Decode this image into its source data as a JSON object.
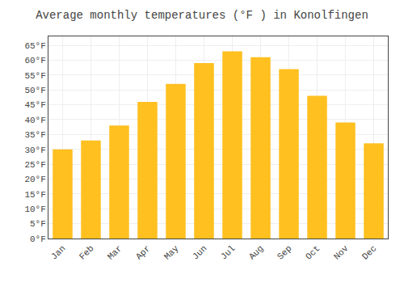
{
  "chart_data": {
    "type": "bar",
    "title": "Average monthly temperatures (°F ) in Konolfingen",
    "categories": [
      "Jan",
      "Feb",
      "Mar",
      "Apr",
      "May",
      "Jun",
      "Jul",
      "Aug",
      "Sep",
      "Oct",
      "Nov",
      "Dec"
    ],
    "values": [
      30,
      33,
      38,
      46,
      52,
      59,
      63,
      61,
      57,
      48,
      39,
      32
    ],
    "color": "#FFC020",
    "ylim": [
      0,
      68
    ],
    "yticks": [
      {
        "value": 0,
        "label": "0°F"
      },
      {
        "value": 5,
        "label": "5°F"
      },
      {
        "value": 10,
        "label": "10°F"
      },
      {
        "value": 15,
        "label": "15°F"
      },
      {
        "value": 20,
        "label": "20°F"
      },
      {
        "value": 25,
        "label": "25°F"
      },
      {
        "value": 30,
        "label": "30°F"
      },
      {
        "value": 35,
        "label": "35°F"
      },
      {
        "value": 40,
        "label": "40°F"
      },
      {
        "value": 45,
        "label": "45°F"
      },
      {
        "value": 50,
        "label": "50°F"
      },
      {
        "value": 55,
        "label": "55°F"
      },
      {
        "value": 60,
        "label": "60°F"
      },
      {
        "value": 65,
        "label": "65°F"
      }
    ],
    "grid": true
  }
}
